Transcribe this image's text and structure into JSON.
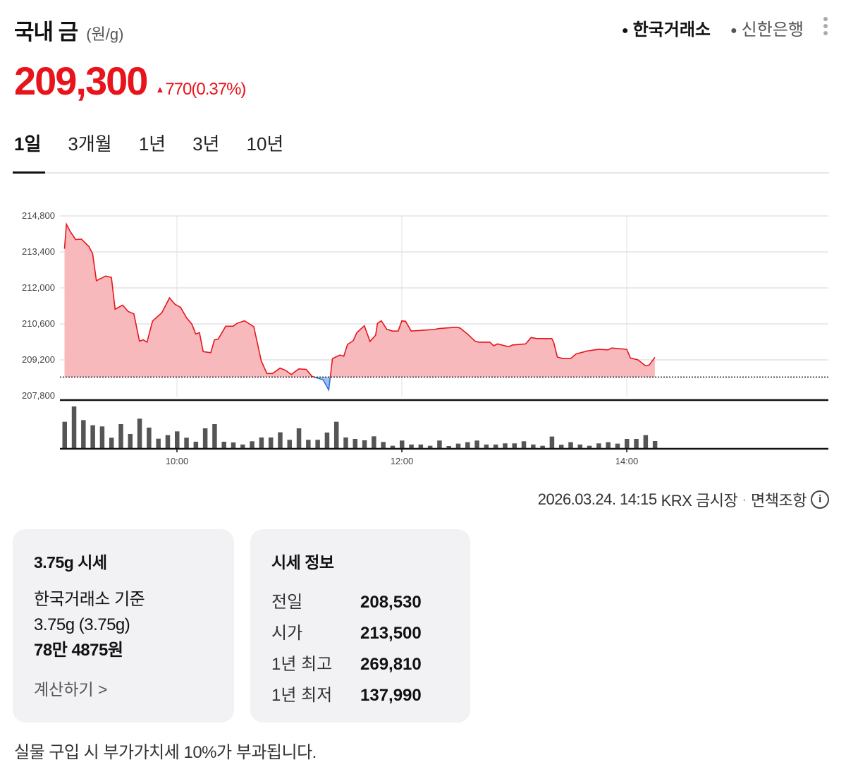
{
  "header": {
    "title": "국내 금",
    "unit": "(원/g)",
    "sources": [
      {
        "label": "한국거래소",
        "active": true
      },
      {
        "label": "신한은행",
        "active": false
      }
    ],
    "more_icon": "kebab-menu-icon"
  },
  "quote": {
    "price": "209,300",
    "change": "770",
    "change_pct": "(0.37%)",
    "direction": "up",
    "up_color": "#e8141c"
  },
  "tabs": [
    {
      "label": "1일",
      "active": true
    },
    {
      "label": "3개월",
      "active": false
    },
    {
      "label": "1년",
      "active": false
    },
    {
      "label": "3년",
      "active": false
    },
    {
      "label": "10년",
      "active": false
    }
  ],
  "chart_data": {
    "type": "area",
    "x_range": [
      "08:57",
      "15:31"
    ],
    "ylim": [
      207800,
      214800
    ],
    "yticks": [
      "214,800",
      "213,400",
      "212,000",
      "210,600",
      "209,200",
      "207,800"
    ],
    "xticks": [
      "10:00",
      "12:00",
      "14:00"
    ],
    "grid": true,
    "baseline": 208530,
    "colors": {
      "above": "#e8141c",
      "above_fill": "#f8b9bc",
      "below": "#2f6fd6",
      "below_fill": "#9fc0ee"
    },
    "series": [
      {
        "points": [
          [
            "09:00",
            213520
          ],
          [
            "09:01",
            214480
          ],
          [
            "09:03",
            214200
          ],
          [
            "09:06",
            213880
          ],
          [
            "09:09",
            213900
          ],
          [
            "09:13",
            213610
          ],
          [
            "09:15",
            213330
          ],
          [
            "09:17",
            212280
          ],
          [
            "09:22",
            212460
          ],
          [
            "09:25",
            212410
          ],
          [
            "09:27",
            211170
          ],
          [
            "09:31",
            211330
          ],
          [
            "09:34",
            211080
          ],
          [
            "09:37",
            210990
          ],
          [
            "09:40",
            209930
          ],
          [
            "09:42",
            209980
          ],
          [
            "09:44",
            209890
          ],
          [
            "09:47",
            210710
          ],
          [
            "09:52",
            211040
          ],
          [
            "09:56",
            211610
          ],
          [
            "09:59",
            211360
          ],
          [
            "10:02",
            211240
          ],
          [
            "10:05",
            210850
          ],
          [
            "10:08",
            210580
          ],
          [
            "10:10",
            210210
          ],
          [
            "10:12",
            210260
          ],
          [
            "10:14",
            209520
          ],
          [
            "10:18",
            209480
          ],
          [
            "10:20",
            209980
          ],
          [
            "10:22",
            210010
          ],
          [
            "10:26",
            210510
          ],
          [
            "10:30",
            210510
          ],
          [
            "10:32",
            210620
          ],
          [
            "10:36",
            210720
          ],
          [
            "10:41",
            210490
          ],
          [
            "10:45",
            209160
          ],
          [
            "10:48",
            208670
          ],
          [
            "10:51",
            208670
          ],
          [
            "10:55",
            208880
          ],
          [
            "10:58",
            208790
          ],
          [
            "11:01",
            208630
          ],
          [
            "11:05",
            208850
          ],
          [
            "11:09",
            208830
          ],
          [
            "11:12",
            208560
          ],
          [
            "11:18",
            208420
          ],
          [
            "11:21",
            208030
          ],
          [
            "11:23",
            209250
          ],
          [
            "11:27",
            209390
          ],
          [
            "11:29",
            209340
          ],
          [
            "11:31",
            209800
          ],
          [
            "11:34",
            209940
          ],
          [
            "11:36",
            210260
          ],
          [
            "11:40",
            210530
          ],
          [
            "11:43",
            209920
          ],
          [
            "11:46",
            210160
          ],
          [
            "11:47",
            210620
          ],
          [
            "11:49",
            210720
          ],
          [
            "11:52",
            210390
          ],
          [
            "11:55",
            210320
          ],
          [
            "11:58",
            210320
          ],
          [
            "12:00",
            210720
          ],
          [
            "12:02",
            210700
          ],
          [
            "12:05",
            210320
          ],
          [
            "12:11",
            210350
          ],
          [
            "12:17",
            210380
          ],
          [
            "12:20",
            210420
          ],
          [
            "12:29",
            210470
          ],
          [
            "12:31",
            210440
          ],
          [
            "12:35",
            210210
          ],
          [
            "12:39",
            209930
          ],
          [
            "12:41",
            209890
          ],
          [
            "12:47",
            209890
          ],
          [
            "12:49",
            209750
          ],
          [
            "12:51",
            209820
          ],
          [
            "12:57",
            209710
          ],
          [
            "12:59",
            209780
          ],
          [
            "13:06",
            209820
          ],
          [
            "13:09",
            210070
          ],
          [
            "13:12",
            210030
          ],
          [
            "13:20",
            210030
          ],
          [
            "13:21",
            209890
          ],
          [
            "13:23",
            209310
          ],
          [
            "13:26",
            209250
          ],
          [
            "13:30",
            209250
          ],
          [
            "13:33",
            209430
          ],
          [
            "13:39",
            209550
          ],
          [
            "13:45",
            209610
          ],
          [
            "13:50",
            209590
          ],
          [
            "13:52",
            209660
          ],
          [
            "14:00",
            209610
          ],
          [
            "14:02",
            209270
          ],
          [
            "14:06",
            209200
          ],
          [
            "14:10",
            208970
          ],
          [
            "14:12",
            209000
          ],
          [
            "14:15",
            209300
          ]
        ]
      }
    ],
    "volume": {
      "start": "09:00",
      "interval_min": 5,
      "values": [
        115,
        180,
        122,
        100,
        95,
        47,
        105,
        63,
        128,
        90,
        43,
        58,
        74,
        47,
        30,
        87,
        105,
        30,
        27,
        18,
        32,
        48,
        48,
        70,
        38,
        87,
        38,
        38,
        69,
        115,
        48,
        42,
        36,
        53,
        29,
        13,
        35,
        18,
        18,
        13,
        35,
        12,
        22,
        28,
        35,
        18,
        18,
        23,
        23,
        32,
        18,
        13,
        52,
        17,
        28,
        18,
        13,
        23,
        28,
        22,
        42,
        42,
        58,
        33
      ]
    }
  },
  "footnote": {
    "timestamp": "2026.03.24. 14:15",
    "market": "KRX 금시장",
    "separator": "·",
    "disclaimer": "면책조항",
    "info_icon": "i"
  },
  "card_375g": {
    "title": "3.75g 시세",
    "basis": "한국거래소 기준",
    "weight": "3.75g (3.75g)",
    "price": "78만 4875원",
    "calc_link": "계산하기 >"
  },
  "card_info": {
    "title": "시세 정보",
    "rows": [
      {
        "label": "전일",
        "value": "208,530"
      },
      {
        "label": "시가",
        "value": "213,500"
      },
      {
        "label": "1년 최고",
        "value": "269,810"
      },
      {
        "label": "1년 최저",
        "value": "137,990"
      }
    ]
  },
  "vat_notice": "실물 구입 시 부가가치세 10%가 부과됩니다."
}
